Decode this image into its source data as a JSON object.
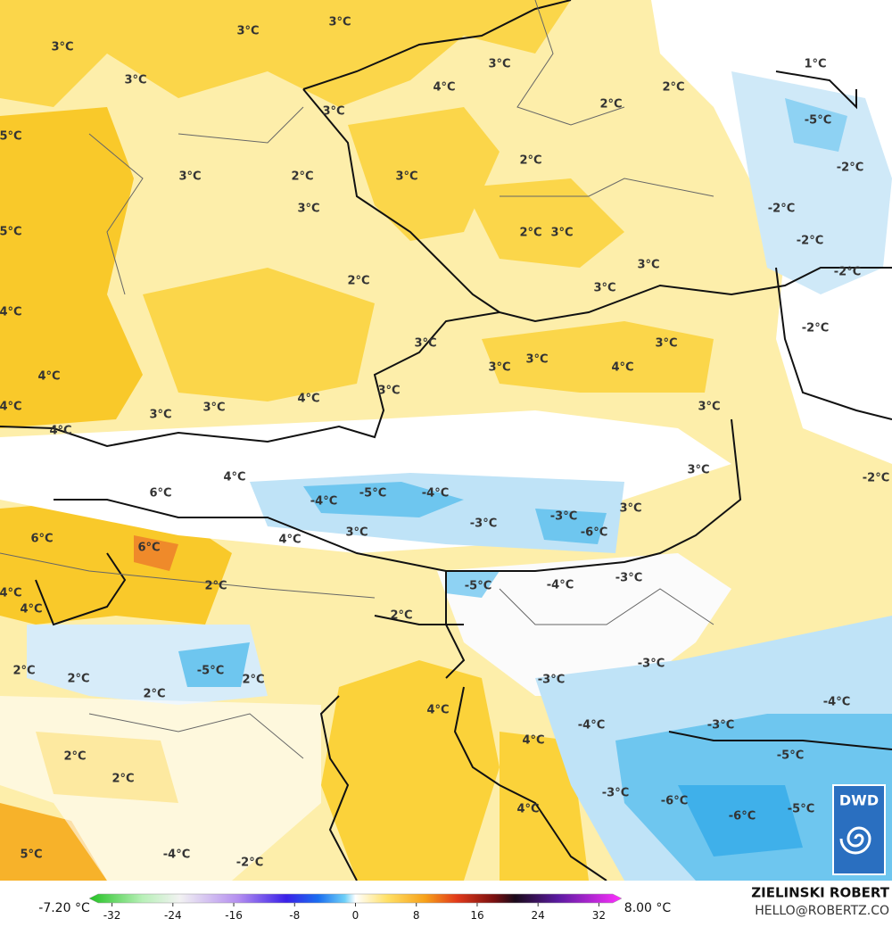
{
  "map": {
    "labels": [
      "3°C",
      "3°C",
      "3°C",
      "3°C",
      "3°C",
      "4°C",
      "3°C",
      "2°C",
      "2°C",
      "1°C",
      "-5°C",
      "5°C",
      "2°C",
      "3°C",
      "2°C",
      "3°C",
      "-2°C",
      "3°C",
      "-2°C",
      "5°C",
      "2°C",
      "3°C",
      "-2°C",
      "3°C",
      "-2°C",
      "2°C",
      "3°C",
      "4°C",
      "-2°C",
      "3°C",
      "3°C",
      "3°C",
      "3°C",
      "4°C",
      "4°C",
      "3°C",
      "4°C",
      "4°C",
      "3°C",
      "3°C",
      "3°C",
      "4°C",
      "4°C",
      "3°C",
      "-2°C",
      "6°C",
      "-5°C",
      "-4°C",
      "-4°C",
      "3°C",
      "-3°C",
      "-3°C",
      "6°C",
      "3°C",
      "4°C",
      "-6°C",
      "6°C",
      "-5°C",
      "-4°C",
      "-3°C",
      "2°C",
      "4°C",
      "4°C",
      "2°C",
      "-3°C",
      "-5°C",
      "2°C",
      "2°C",
      "2°C",
      "-3°C",
      "2°C",
      "-4°C",
      "4°C",
      "-3°C",
      "-4°C",
      "4°C",
      "2°C",
      "-5°C",
      "2°C",
      "-3°C",
      "-6°C",
      "-5°C",
      "-6°C",
      "4°C",
      "5°C",
      "-4°C",
      "-2°C"
    ],
    "logo": "DWD"
  },
  "colorbar": {
    "min_label": "-7.20 °C",
    "max_label": "8.00 °C",
    "range": [
      -35,
      35
    ],
    "ticks": [
      -32,
      -24,
      -16,
      -8,
      0,
      8,
      16,
      24,
      32
    ]
  },
  "credit": {
    "name": "ZIELINSKI ROBERT",
    "email": "HELLO@ROBERTZ.CO"
  }
}
